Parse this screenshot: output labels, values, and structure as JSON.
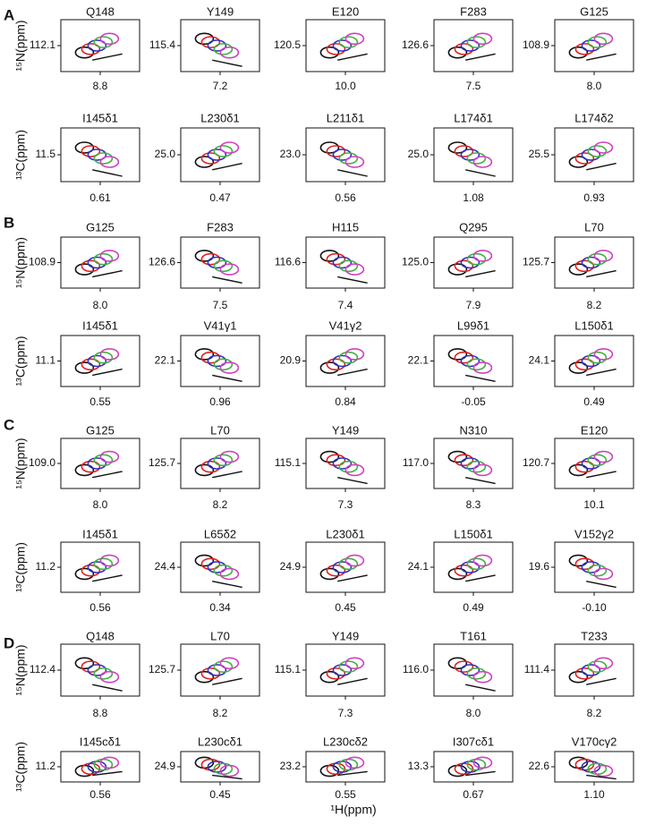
{
  "x_axis_label": "¹H(ppm)",
  "panels": [
    {
      "label": "A",
      "rows": [
        {
          "axis_label": "¹⁵N(ppm)",
          "plots": [
            {
              "title": "Q148",
              "ytick": "112.1",
              "xtick": "8.8"
            },
            {
              "title": "Y149",
              "ytick": "115.4",
              "xtick": "7.2"
            },
            {
              "title": "E120",
              "ytick": "120.5",
              "xtick": "10.0"
            },
            {
              "title": "F283",
              "ytick": "126.6",
              "xtick": "7.5"
            },
            {
              "title": "G125",
              "ytick": "108.9",
              "xtick": "8.0"
            }
          ]
        },
        {
          "axis_label": "¹³C(ppm)",
          "plots": [
            {
              "title": "I145δ1",
              "ytick": "11.5",
              "xtick": "0.61"
            },
            {
              "title": "L230δ1",
              "ytick": "25.0",
              "xtick": "0.47"
            },
            {
              "title": "L211δ1",
              "ytick": "23.0",
              "xtick": "0.56"
            },
            {
              "title": "L174δ1",
              "ytick": "25.0",
              "xtick": "1.08"
            },
            {
              "title": "L174δ2",
              "ytick": "25.5",
              "xtick": "0.93"
            }
          ]
        }
      ]
    },
    {
      "label": "B",
      "rows": [
        {
          "axis_label": "¹⁵N(ppm)",
          "plots": [
            {
              "title": "G125",
              "ytick": "108.9",
              "xtick": "8.0"
            },
            {
              "title": "F283",
              "ytick": "126.6",
              "xtick": "7.5"
            },
            {
              "title": "H115",
              "ytick": "116.6",
              "xtick": "7.4"
            },
            {
              "title": "Q295",
              "ytick": "125.0",
              "xtick": "7.9"
            },
            {
              "title": "L70",
              "ytick": "125.7",
              "xtick": "8.2"
            }
          ]
        },
        {
          "axis_label": "¹³C(ppm)",
          "plots": [
            {
              "title": "I145δ1",
              "ytick": "11.1",
              "xtick": "0.55"
            },
            {
              "title": "V41γ1",
              "ytick": "22.1",
              "xtick": "0.96"
            },
            {
              "title": "V41γ2",
              "ytick": "20.9",
              "xtick": "0.84"
            },
            {
              "title": "L99δ1",
              "ytick": "22.1",
              "xtick": "-0.05"
            },
            {
              "title": "L150δ1",
              "ytick": "24.1",
              "xtick": "0.49"
            }
          ]
        }
      ]
    },
    {
      "label": "C",
      "rows": [
        {
          "axis_label": "¹⁵N(ppm)",
          "plots": [
            {
              "title": "G125",
              "ytick": "109.0",
              "xtick": "8.0"
            },
            {
              "title": "L70",
              "ytick": "125.7",
              "xtick": "8.2"
            },
            {
              "title": "Y149",
              "ytick": "115.1",
              "xtick": "7.3"
            },
            {
              "title": "N310",
              "ytick": "117.0",
              "xtick": "8.3"
            },
            {
              "title": "E120",
              "ytick": "120.7",
              "xtick": "10.1"
            }
          ]
        },
        {
          "axis_label": "¹³C(ppm)",
          "plots": [
            {
              "title": "I145δ1",
              "ytick": "11.2",
              "xtick": "0.56"
            },
            {
              "title": "L65δ2",
              "ytick": "24.4",
              "xtick": "0.34"
            },
            {
              "title": "L230δ1",
              "ytick": "24.9",
              "xtick": "0.45"
            },
            {
              "title": "L150δ1",
              "ytick": "24.1",
              "xtick": "0.49"
            },
            {
              "title": "V152γ2",
              "ytick": "19.6",
              "xtick": "-0.10"
            }
          ]
        }
      ]
    },
    {
      "label": "D",
      "rows": [
        {
          "axis_label": "¹⁵N(ppm)",
          "plots": [
            {
              "title": "Q148",
              "ytick": "112.4",
              "xtick": "8.8"
            },
            {
              "title": "L70",
              "ytick": "125.7",
              "xtick": "8.2"
            },
            {
              "title": "Y149",
              "ytick": "115.1",
              "xtick": "7.3"
            },
            {
              "title": "T161",
              "ytick": "116.0",
              "xtick": "8.0"
            },
            {
              "title": "T233",
              "ytick": "111.4",
              "xtick": "8.2"
            }
          ]
        },
        {
          "axis_label": "¹³C(ppm)",
          "plots": [
            {
              "title": "I145cδ1",
              "ytick": "11.2",
              "xtick": "0.56"
            },
            {
              "title": "L230cδ1",
              "ytick": "24.9",
              "xtick": "0.45"
            },
            {
              "title": "L230cδ2",
              "ytick": "23.2",
              "xtick": "0.55"
            },
            {
              "title": "I307cδ1",
              "ytick": "13.3",
              "xtick": "0.67"
            },
            {
              "title": "V170cγ2",
              "ytick": "22.6",
              "xtick": "1.10"
            }
          ]
        }
      ]
    }
  ]
}
